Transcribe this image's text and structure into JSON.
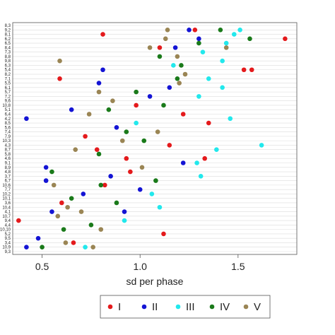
{
  "chart_data": {
    "type": "scatter",
    "xlabel": "sd per phase",
    "ylabel": "",
    "xlim": [
      0.35,
      1.8
    ],
    "x_ticks": [
      "0.5",
      "1.0",
      "1.5"
    ],
    "grid": true,
    "legend_position": "bottom",
    "categories": [
      "8,3",
      "9,2",
      "8,1",
      "6,2",
      "6,5",
      "8,4",
      "7,3",
      "8,8",
      "9,8",
      "6,3",
      "5,4",
      "8,2",
      "7,1",
      "5,5",
      "6,1",
      "5,7",
      "7,2",
      "9,6",
      "10,8",
      "5,1",
      "6,4",
      "4,2",
      "8,5",
      "5,6",
      "7,4",
      "7,9",
      "10,3",
      "4,3",
      "8,7",
      "5,8",
      "4,6",
      "9,1",
      "8,9",
      "4,8",
      "3,7",
      "6,7",
      "10,6",
      "7,7",
      "10,2",
      "10,1",
      "3,6",
      "10,4",
      "4,1",
      "10,7",
      "9,4",
      "4,4",
      "10,10",
      "5,2",
      "9,5",
      "3,4",
      "10,9",
      "9,3"
    ],
    "series": [
      {
        "name": "I",
        "color": "#e41a1c",
        "points": [
          [
            0.81,
            2
          ],
          [
            1.28,
            1
          ],
          [
            1.74,
            3
          ],
          [
            1.1,
            5
          ],
          [
            1.57,
            10
          ],
          [
            0.59,
            12
          ],
          [
            1.53,
            10
          ],
          [
            0.98,
            18
          ],
          [
            1.35,
            22
          ],
          [
            0.72,
            25
          ],
          [
            1.15,
            27
          ],
          [
            1.33,
            30
          ],
          [
            0.95,
            33
          ],
          [
            0.82,
            36
          ],
          [
            0.6,
            40
          ],
          [
            0.38,
            44
          ],
          [
            1.12,
            47
          ],
          [
            0.66,
            49
          ],
          [
            0.93,
            30
          ],
          [
            1.22,
            20
          ],
          [
            0.78,
            28
          ]
        ]
      },
      {
        "name": "II",
        "color": "#1414d4",
        "points": [
          [
            1.25,
            1
          ],
          [
            1.3,
            3
          ],
          [
            1.18,
            5
          ],
          [
            0.79,
            13
          ],
          [
            0.42,
            21
          ],
          [
            0.81,
            10
          ],
          [
            0.65,
            19
          ],
          [
            1.22,
            31
          ],
          [
            0.52,
            32
          ],
          [
            0.52,
            35
          ],
          [
            1.0,
            37
          ],
          [
            0.48,
            48
          ],
          [
            0.42,
            50
          ],
          [
            0.92,
            42
          ],
          [
            1.05,
            16
          ],
          [
            1.15,
            14
          ],
          [
            0.88,
            23
          ],
          [
            0.55,
            42
          ],
          [
            0.71,
            38
          ],
          [
            0.85,
            34
          ]
        ]
      },
      {
        "name": "III",
        "color": "#22e8ec",
        "points": [
          [
            1.51,
            1
          ],
          [
            1.48,
            2
          ],
          [
            1.44,
            4
          ],
          [
            1.32,
            6
          ],
          [
            1.42,
            8
          ],
          [
            1.17,
            9
          ],
          [
            1.35,
            12
          ],
          [
            1.42,
            14
          ],
          [
            1.3,
            16
          ],
          [
            1.46,
            21
          ],
          [
            1.62,
            27
          ],
          [
            1.39,
            28
          ],
          [
            1.29,
            31
          ],
          [
            1.31,
            34
          ],
          [
            1.06,
            38
          ],
          [
            1.1,
            41
          ],
          [
            0.92,
            44
          ],
          [
            0.72,
            50
          ],
          [
            0.98,
            22
          ]
        ]
      },
      {
        "name": "IV",
        "color": "#1a7a1a",
        "points": [
          [
            1.41,
            1
          ],
          [
            1.56,
            3
          ],
          [
            1.3,
            4
          ],
          [
            1.1,
            7
          ],
          [
            1.21,
            9
          ],
          [
            0.98,
            15
          ],
          [
            1.12,
            18
          ],
          [
            0.93,
            24
          ],
          [
            0.79,
            29
          ],
          [
            0.55,
            33
          ],
          [
            0.8,
            36
          ],
          [
            0.65,
            39
          ],
          [
            0.88,
            40
          ],
          [
            0.75,
            45
          ],
          [
            0.5,
            50
          ],
          [
            1.02,
            26
          ],
          [
            1.19,
            12
          ],
          [
            0.84,
            19
          ],
          [
            0.61,
            46
          ],
          [
            1.08,
            35
          ]
        ]
      },
      {
        "name": "V",
        "color": "#9a8554",
        "points": [
          [
            1.14,
            1
          ],
          [
            1.13,
            3
          ],
          [
            1.05,
            5
          ],
          [
            1.19,
            7
          ],
          [
            0.59,
            8
          ],
          [
            1.44,
            5
          ],
          [
            1.23,
            11
          ],
          [
            0.86,
            17
          ],
          [
            1.2,
            13
          ],
          [
            0.79,
            15
          ],
          [
            0.74,
            20
          ],
          [
            0.91,
            26
          ],
          [
            0.67,
            28
          ],
          [
            1.01,
            32
          ],
          [
            0.56,
            36
          ],
          [
            0.63,
            41
          ],
          [
            0.58,
            43
          ],
          [
            0.8,
            46
          ],
          [
            0.62,
            49
          ],
          [
            0.76,
            50
          ],
          [
            0.7,
            42
          ],
          [
            1.09,
            24
          ]
        ]
      }
    ]
  }
}
